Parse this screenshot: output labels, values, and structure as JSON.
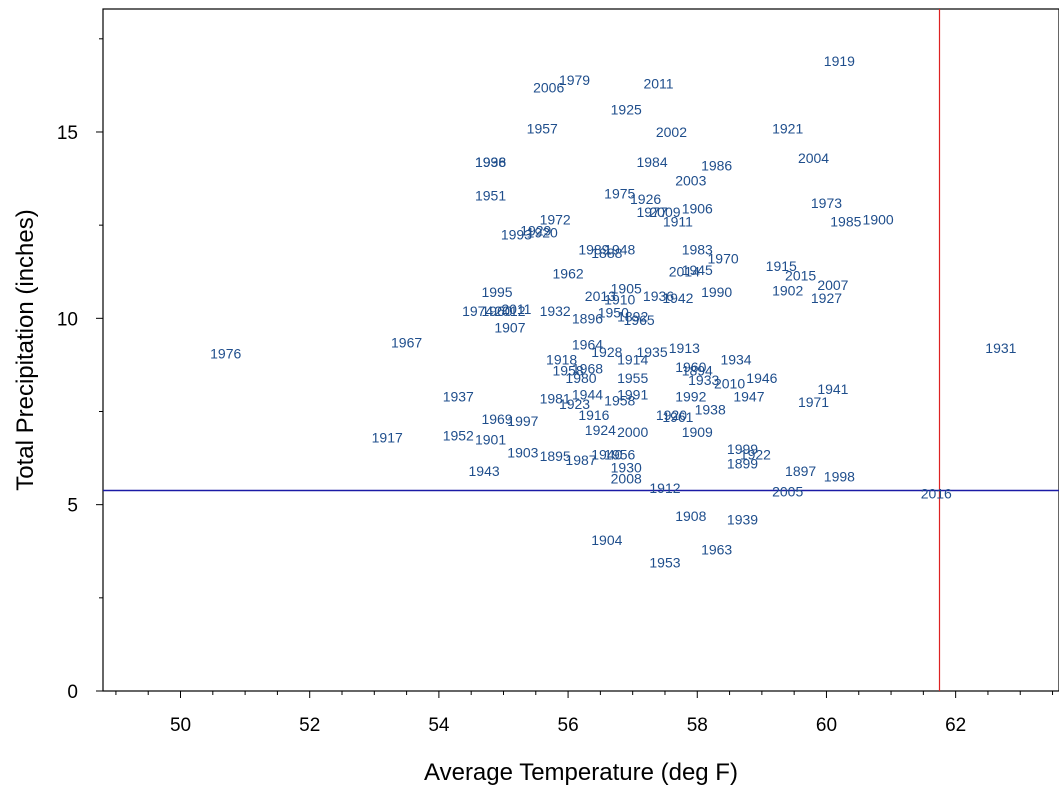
{
  "chart_data": {
    "type": "scatter",
    "title": "",
    "xlabel": "Average Temperature (deg F)",
    "ylabel": "Total Precipitation (inches)",
    "xlim": [
      48.8,
      63.6
    ],
    "ylim": [
      0,
      18.3
    ],
    "x_ticks": [
      50,
      52,
      54,
      56,
      58,
      60,
      62
    ],
    "y_ticks": [
      0,
      5,
      10,
      15
    ],
    "point_color": "#1f4e8c",
    "reference_lines": {
      "vertical": {
        "x": 61.75,
        "color": "#dd2222"
      },
      "horizontal": {
        "y": 5.38,
        "color": "#1a1aa6"
      }
    },
    "points": [
      {
        "label": "1976",
        "x": 50.7,
        "y": 9.05
      },
      {
        "label": "1967",
        "x": 53.5,
        "y": 9.35
      },
      {
        "label": "1917",
        "x": 53.2,
        "y": 6.8
      },
      {
        "label": "1931",
        "x": 62.7,
        "y": 9.2
      },
      {
        "label": "2016",
        "x": 61.7,
        "y": 5.3
      },
      {
        "label": "1919",
        "x": 60.2,
        "y": 16.9
      },
      {
        "label": "2006",
        "x": 55.7,
        "y": 16.2
      },
      {
        "label": "1979",
        "x": 56.1,
        "y": 16.4
      },
      {
        "label": "2011",
        "x": 57.4,
        "y": 16.3
      },
      {
        "label": "1925",
        "x": 56.9,
        "y": 15.6
      },
      {
        "label": "1957",
        "x": 55.6,
        "y": 15.1
      },
      {
        "label": "2002",
        "x": 57.6,
        "y": 15.0
      },
      {
        "label": "1921",
        "x": 59.4,
        "y": 15.1
      },
      {
        "label": "1998",
        "x": 54.8,
        "y": 14.2
      },
      {
        "label": "1936",
        "x": 54.8,
        "y": 14.2
      },
      {
        "label": "1984",
        "x": 57.3,
        "y": 14.2
      },
      {
        "label": "1986",
        "x": 58.3,
        "y": 14.1
      },
      {
        "label": "2004",
        "x": 59.8,
        "y": 14.3
      },
      {
        "label": "2003",
        "x": 57.9,
        "y": 13.7
      },
      {
        "label": "1951",
        "x": 54.8,
        "y": 13.3
      },
      {
        "label": "1975",
        "x": 56.8,
        "y": 13.35
      },
      {
        "label": "1926",
        "x": 57.2,
        "y": 13.2
      },
      {
        "label": "1906",
        "x": 58.0,
        "y": 12.95
      },
      {
        "label": "1977",
        "x": 57.3,
        "y": 12.85
      },
      {
        "label": "2009",
        "x": 57.5,
        "y": 12.85
      },
      {
        "label": "1911",
        "x": 57.7,
        "y": 12.6
      },
      {
        "label": "1973",
        "x": 60.0,
        "y": 13.1
      },
      {
        "label": "1985",
        "x": 60.3,
        "y": 12.6
      },
      {
        "label": "1900",
        "x": 60.8,
        "y": 12.65
      },
      {
        "label": "1972",
        "x": 55.8,
        "y": 12.65
      },
      {
        "label": "1993",
        "x": 55.2,
        "y": 12.25
      },
      {
        "label": "1929",
        "x": 55.5,
        "y": 12.35
      },
      {
        "label": "1920",
        "x": 55.6,
        "y": 12.3
      },
      {
        "label": "1989",
        "x": 56.4,
        "y": 11.85
      },
      {
        "label": "1948",
        "x": 56.8,
        "y": 11.85
      },
      {
        "label": "1888",
        "x": 56.6,
        "y": 11.75
      },
      {
        "label": "1983",
        "x": 58.0,
        "y": 11.85
      },
      {
        "label": "1970",
        "x": 58.4,
        "y": 11.6
      },
      {
        "label": "1962",
        "x": 56.0,
        "y": 11.2
      },
      {
        "label": "2014",
        "x": 57.8,
        "y": 11.25
      },
      {
        "label": "1945",
        "x": 58.0,
        "y": 11.3
      },
      {
        "label": "1915",
        "x": 59.3,
        "y": 11.4
      },
      {
        "label": "2015",
        "x": 59.6,
        "y": 11.15
      },
      {
        "label": "1995",
        "x": 54.9,
        "y": 10.7
      },
      {
        "label": "2013",
        "x": 56.5,
        "y": 10.6
      },
      {
        "label": "1905",
        "x": 56.9,
        "y": 10.8
      },
      {
        "label": "1910",
        "x": 56.8,
        "y": 10.5
      },
      {
        "label": "1936",
        "x": 57.4,
        "y": 10.6
      },
      {
        "label": "1942",
        "x": 57.7,
        "y": 10.55
      },
      {
        "label": "1990",
        "x": 58.3,
        "y": 10.7
      },
      {
        "label": "1902",
        "x": 59.4,
        "y": 10.75
      },
      {
        "label": "2007",
        "x": 60.1,
        "y": 10.9
      },
      {
        "label": "1927",
        "x": 60.0,
        "y": 10.55
      },
      {
        "label": "1974",
        "x": 54.6,
        "y": 10.2
      },
      {
        "label": "1960",
        "x": 54.9,
        "y": 10.2
      },
      {
        "label": "2012",
        "x": 55.1,
        "y": 10.2
      },
      {
        "label": "2011",
        "x": 55.2,
        "y": 10.25
      },
      {
        "label": "1932",
        "x": 55.8,
        "y": 10.2
      },
      {
        "label": "1896",
        "x": 56.3,
        "y": 10.0
      },
      {
        "label": "1950",
        "x": 56.7,
        "y": 10.15
      },
      {
        "label": "1892",
        "x": 57.0,
        "y": 10.05
      },
      {
        "label": "1965",
        "x": 57.1,
        "y": 9.95
      },
      {
        "label": "1907",
        "x": 55.1,
        "y": 9.75
      },
      {
        "label": "1964",
        "x": 56.3,
        "y": 9.3
      },
      {
        "label": "1928",
        "x": 56.6,
        "y": 9.1
      },
      {
        "label": "1935",
        "x": 57.3,
        "y": 9.1
      },
      {
        "label": "1913",
        "x": 57.8,
        "y": 9.2
      },
      {
        "label": "1918",
        "x": 55.9,
        "y": 8.9
      },
      {
        "label": "1914",
        "x": 57.0,
        "y": 8.9
      },
      {
        "label": "1934",
        "x": 58.6,
        "y": 8.9
      },
      {
        "label": "1960",
        "x": 57.9,
        "y": 8.7
      },
      {
        "label": "1894",
        "x": 58.0,
        "y": 8.6
      },
      {
        "label": "1958",
        "x": 56.0,
        "y": 8.6
      },
      {
        "label": "1968",
        "x": 56.3,
        "y": 8.65
      },
      {
        "label": "1980",
        "x": 56.2,
        "y": 8.4
      },
      {
        "label": "1955",
        "x": 57.0,
        "y": 8.4
      },
      {
        "label": "1933",
        "x": 58.1,
        "y": 8.35
      },
      {
        "label": "1946",
        "x": 59.0,
        "y": 8.4
      },
      {
        "label": "2010",
        "x": 58.5,
        "y": 8.25
      },
      {
        "label": "1941",
        "x": 60.1,
        "y": 8.1
      },
      {
        "label": "1937",
        "x": 54.3,
        "y": 7.9
      },
      {
        "label": "1981",
        "x": 55.8,
        "y": 7.85
      },
      {
        "label": "1944",
        "x": 56.3,
        "y": 7.95
      },
      {
        "label": "1991",
        "x": 57.0,
        "y": 7.95
      },
      {
        "label": "1958",
        "x": 56.8,
        "y": 7.8
      },
      {
        "label": "1923",
        "x": 56.1,
        "y": 7.7
      },
      {
        "label": "1992",
        "x": 57.9,
        "y": 7.9
      },
      {
        "label": "1947",
        "x": 58.8,
        "y": 7.9
      },
      {
        "label": "1971",
        "x": 59.8,
        "y": 7.75
      },
      {
        "label": "1916",
        "x": 56.4,
        "y": 7.4
      },
      {
        "label": "1938",
        "x": 58.2,
        "y": 7.55
      },
      {
        "label": "1969",
        "x": 54.9,
        "y": 7.3
      },
      {
        "label": "1997",
        "x": 55.3,
        "y": 7.25
      },
      {
        "label": "1920",
        "x": 57.6,
        "y": 7.4
      },
      {
        "label": "1961",
        "x": 57.7,
        "y": 7.35
      },
      {
        "label": "1924",
        "x": 56.5,
        "y": 7.0
      },
      {
        "label": "2000",
        "x": 57.0,
        "y": 6.95
      },
      {
        "label": "1909",
        "x": 58.0,
        "y": 6.95
      },
      {
        "label": "1952",
        "x": 54.3,
        "y": 6.85
      },
      {
        "label": "1901",
        "x": 54.8,
        "y": 6.75
      },
      {
        "label": "1903",
        "x": 55.3,
        "y": 6.4
      },
      {
        "label": "1895",
        "x": 55.8,
        "y": 6.3
      },
      {
        "label": "1987",
        "x": 56.2,
        "y": 6.2
      },
      {
        "label": "1940",
        "x": 56.6,
        "y": 6.35
      },
      {
        "label": "1956",
        "x": 56.8,
        "y": 6.35
      },
      {
        "label": "1999",
        "x": 58.7,
        "y": 6.5
      },
      {
        "label": "1922",
        "x": 58.9,
        "y": 6.35
      },
      {
        "label": "1899",
        "x": 58.7,
        "y": 6.1
      },
      {
        "label": "1943",
        "x": 54.7,
        "y": 5.9
      },
      {
        "label": "1930",
        "x": 56.9,
        "y": 6.0
      },
      {
        "label": "2008",
        "x": 56.9,
        "y": 5.7
      },
      {
        "label": "1912",
        "x": 57.5,
        "y": 5.45
      },
      {
        "label": "1897",
        "x": 59.6,
        "y": 5.9
      },
      {
        "label": "1998",
        "x": 60.2,
        "y": 5.75
      },
      {
        "label": "2005",
        "x": 59.4,
        "y": 5.35
      },
      {
        "label": "1908",
        "x": 57.9,
        "y": 4.7
      },
      {
        "label": "1939",
        "x": 58.7,
        "y": 4.6
      },
      {
        "label": "1904",
        "x": 56.6,
        "y": 4.05
      },
      {
        "label": "1963",
        "x": 58.3,
        "y": 3.8
      },
      {
        "label": "1953",
        "x": 57.5,
        "y": 3.45
      }
    ]
  }
}
